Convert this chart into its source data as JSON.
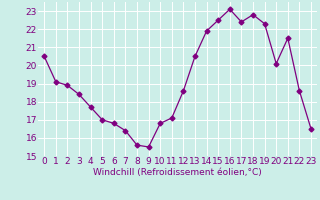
{
  "x": [
    0,
    1,
    2,
    3,
    4,
    5,
    6,
    7,
    8,
    9,
    10,
    11,
    12,
    13,
    14,
    15,
    16,
    17,
    18,
    19,
    20,
    21,
    22,
    23
  ],
  "y": [
    20.5,
    19.1,
    18.9,
    18.4,
    17.7,
    17.0,
    16.8,
    16.4,
    15.6,
    15.5,
    16.8,
    17.1,
    18.6,
    20.5,
    21.9,
    22.5,
    23.1,
    22.4,
    22.8,
    22.3,
    20.1,
    21.5,
    18.6,
    16.5
  ],
  "line_color": "#800080",
  "marker": "D",
  "marker_size": 2.5,
  "bg_color": "#cceee8",
  "grid_color": "#ffffff",
  "xlabel": "Windchill (Refroidissement éolien,°C)",
  "ylim": [
    15,
    23.5
  ],
  "yticks": [
    15,
    16,
    17,
    18,
    19,
    20,
    21,
    22,
    23
  ],
  "xticks": [
    0,
    1,
    2,
    3,
    4,
    5,
    6,
    7,
    8,
    9,
    10,
    11,
    12,
    13,
    14,
    15,
    16,
    17,
    18,
    19,
    20,
    21,
    22,
    23
  ],
  "xlabel_fontsize": 6.5,
  "tick_fontsize": 6.5,
  "label_color": "#800080"
}
